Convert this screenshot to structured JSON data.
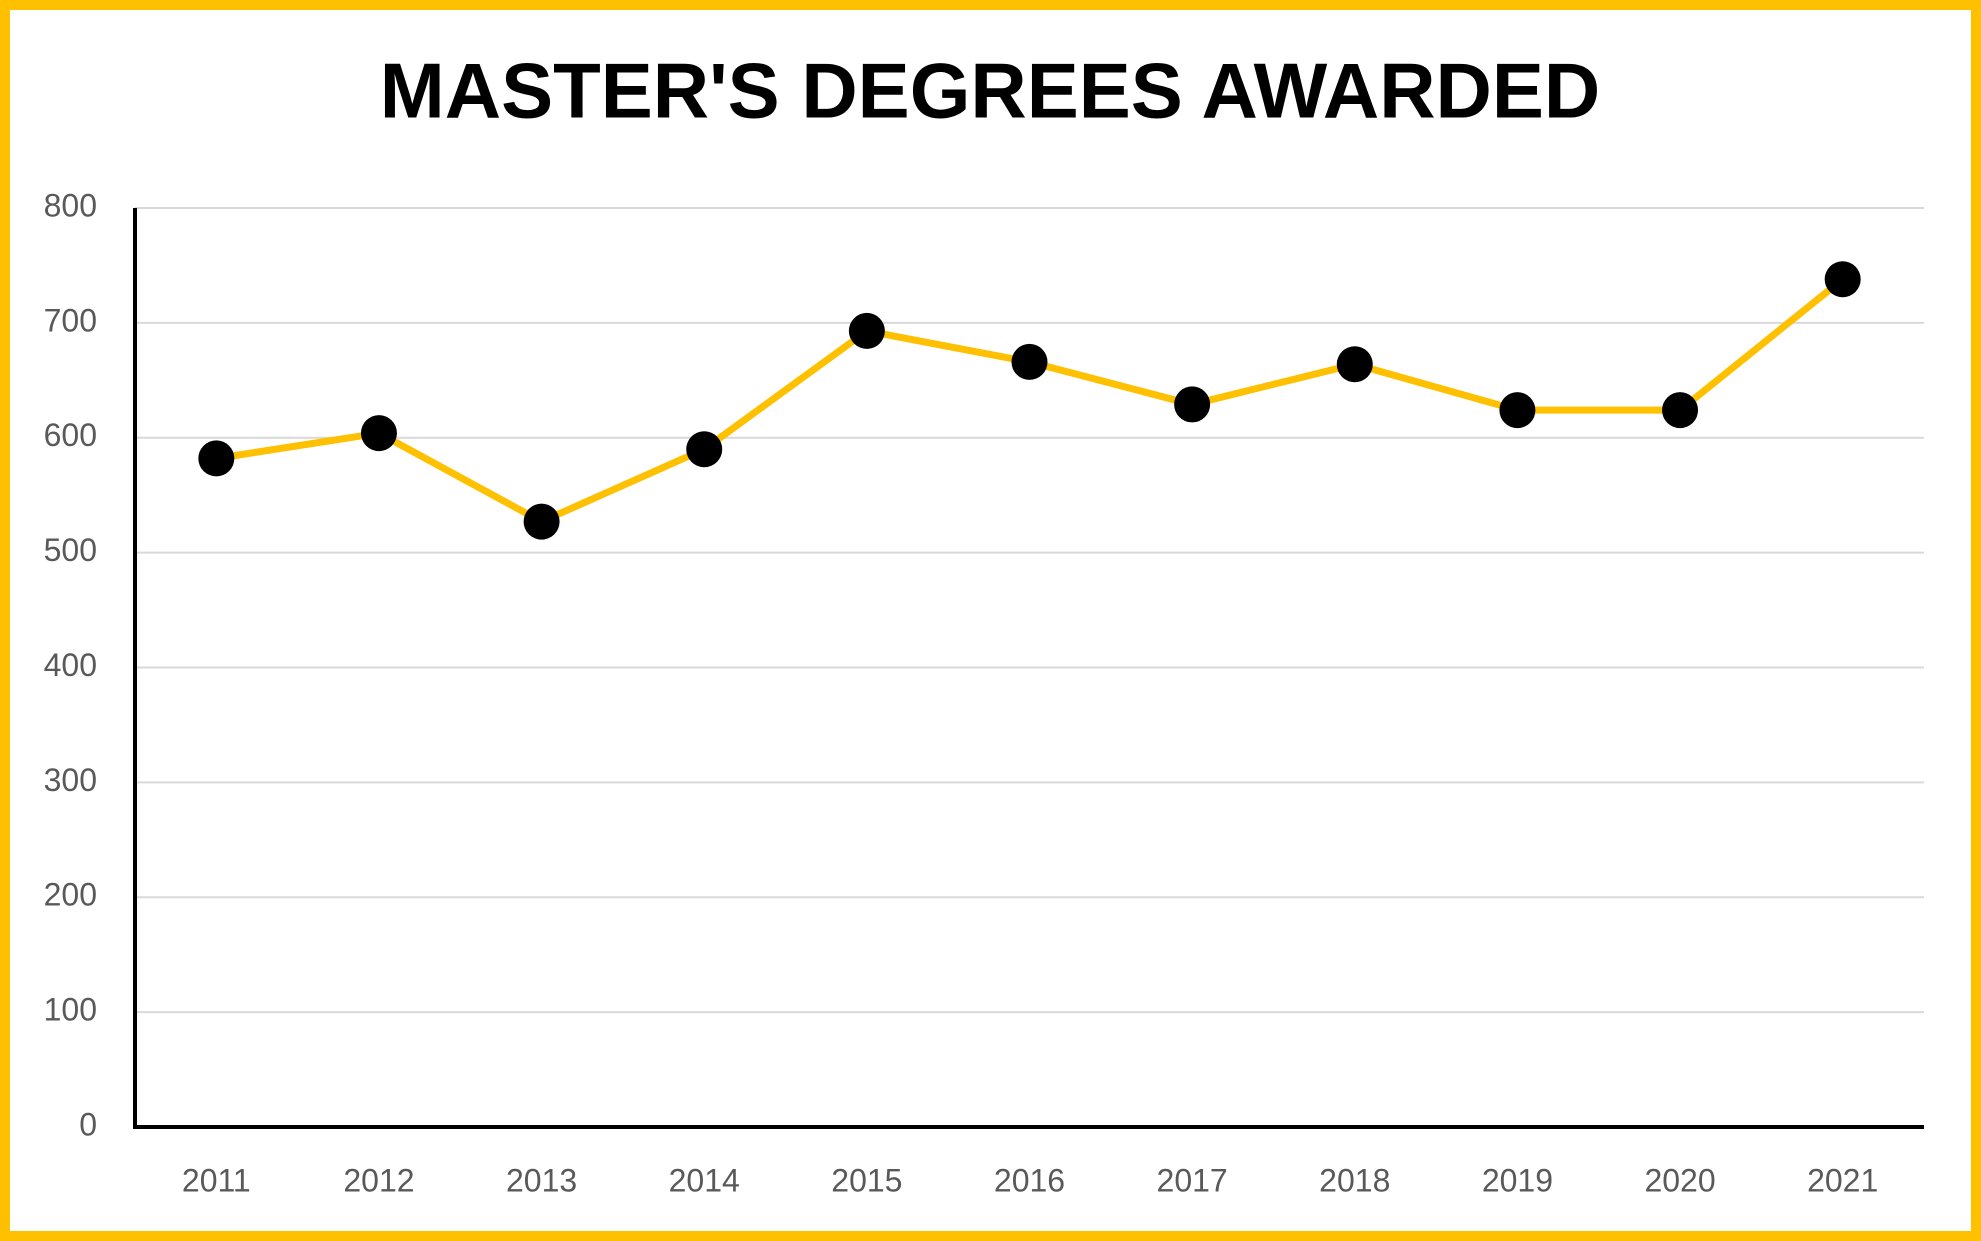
{
  "chart_data": {
    "type": "line",
    "title": "MASTER'S DEGREES AWARDED",
    "categories": [
      "2011",
      "2012",
      "2013",
      "2014",
      "2015",
      "2016",
      "2017",
      "2018",
      "2019",
      "2020",
      "2021"
    ],
    "series": [
      {
        "color": "#FFC000",
        "marker_color": "#000000",
        "values": [
          582,
          604,
          527,
          590,
          693,
          666,
          629,
          664,
          624,
          624,
          738
        ]
      }
    ],
    "ylim": [
      0,
      800
    ],
    "yticks": [
      0,
      100,
      200,
      300,
      400,
      500,
      600,
      700,
      800
    ],
    "grid": true
  }
}
